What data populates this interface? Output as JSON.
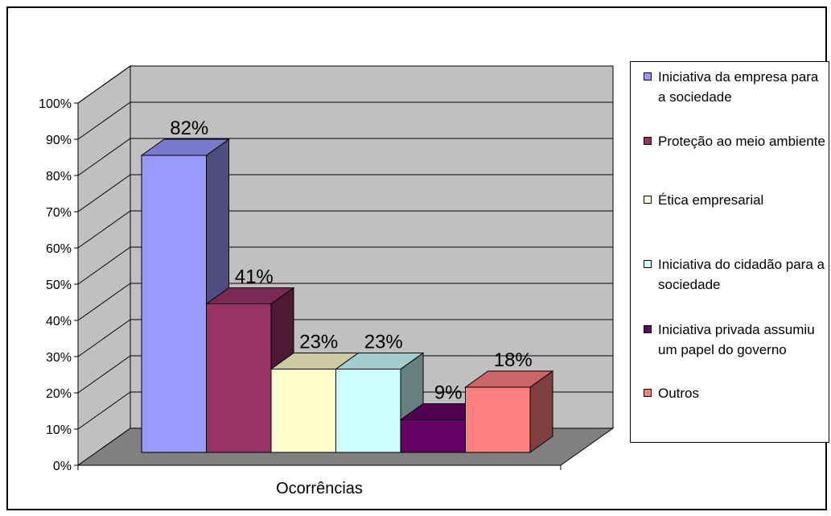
{
  "chart_data": {
    "type": "bar",
    "xlabel": "Ocorrências",
    "ylim": [
      0,
      100
    ],
    "yticks": [
      "0%",
      "10%",
      "20%",
      "30%",
      "40%",
      "50%",
      "60%",
      "70%",
      "80%",
      "90%",
      "100%"
    ],
    "series": [
      {
        "name": "Iniciativa da empresa para a sociedade",
        "value": 82,
        "label": "82%",
        "color": "#9999FF"
      },
      {
        "name": "Proteção ao meio ambiente",
        "value": 41,
        "label": "41%",
        "color": "#993366"
      },
      {
        "name": "Ética empresarial",
        "value": 23,
        "label": "23%",
        "color": "#FFFFCC"
      },
      {
        "name": "Iniciativa do cidadão para a sociedade",
        "value": 23,
        "label": "23%",
        "color": "#CCFFFF"
      },
      {
        "name": "Iniciativa privada assumiu um papel do governo",
        "value": 9,
        "label": "9%",
        "color": "#660066"
      },
      {
        "name": "Outros",
        "value": 18,
        "label": "18%",
        "color": "#FF8080"
      }
    ],
    "legend_position": "right",
    "grid": true,
    "wall_color": "#C0C0C0",
    "floor_color": "#808080"
  }
}
